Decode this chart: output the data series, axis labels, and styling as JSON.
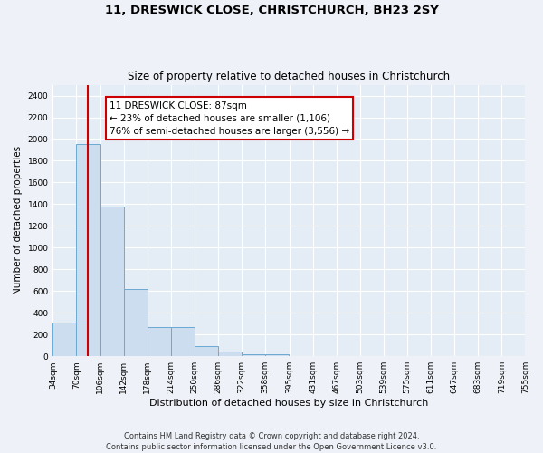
{
  "title_line1": "11, DRESWICK CLOSE, CHRISTCHURCH, BH23 2SY",
  "title_line2": "Size of property relative to detached houses in Christchurch",
  "xlabel": "Distribution of detached houses by size in Christchurch",
  "ylabel": "Number of detached properties",
  "bar_edges": [
    34,
    70,
    106,
    142,
    178,
    214,
    250,
    286,
    322,
    358,
    395,
    431,
    467,
    503,
    539,
    575,
    611,
    647,
    683,
    719,
    755
  ],
  "bar_values": [
    310,
    1950,
    1380,
    620,
    270,
    270,
    95,
    45,
    20,
    15,
    0,
    0,
    0,
    0,
    0,
    0,
    0,
    0,
    0,
    0
  ],
  "bar_color": "#ccddf0",
  "bar_edge_color": "#6aaad4",
  "red_line_x": 87,
  "annotation_text": "11 DRESWICK CLOSE: 87sqm\n← 23% of detached houses are smaller (1,106)\n76% of semi-detached houses are larger (3,556) →",
  "annotation_box_color": "#ffffff",
  "annotation_box_edge_color": "#cc0000",
  "ylim": [
    0,
    2500
  ],
  "yticks": [
    0,
    200,
    400,
    600,
    800,
    1000,
    1200,
    1400,
    1600,
    1800,
    2000,
    2200,
    2400
  ],
  "footer_line1": "Contains HM Land Registry data © Crown copyright and database right 2024.",
  "footer_line2": "Contains public sector information licensed under the Open Government Licence v3.0.",
  "bg_color": "#eef2f8",
  "plot_bg_color": "#e4ecf5",
  "grid_color": "#ffffff",
  "title1_fontsize": 9.5,
  "title2_fontsize": 8.5,
  "xlabel_fontsize": 8,
  "ylabel_fontsize": 7.5,
  "tick_fontsize": 6.5,
  "annotation_fontsize": 7.5,
  "footer_fontsize": 6
}
